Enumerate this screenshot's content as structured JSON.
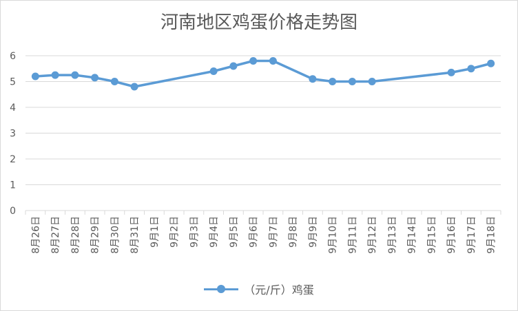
{
  "chart_data": {
    "type": "line",
    "title": "河南地区鸡蛋价格走势图",
    "categories": [
      "8月26日",
      "8月27日",
      "8月28日",
      "8月29日",
      "8月30日",
      "8月31日",
      "9月1日",
      "9月2日",
      "9月3日",
      "9月4日",
      "9月5日",
      "9月6日",
      "9月7日",
      "9月8日",
      "9月9日",
      "9月10日",
      "9月11日",
      "9月12日",
      "9月13日",
      "9月14日",
      "9月15日",
      "9月16日",
      "9月17日",
      "9月18日"
    ],
    "series": [
      {
        "name": "（元/斤）鸡蛋",
        "color": "#5b9bd5",
        "values": [
          5.2,
          5.25,
          5.25,
          5.15,
          5.0,
          4.8,
          null,
          null,
          null,
          5.4,
          5.6,
          5.8,
          5.8,
          null,
          5.1,
          5.0,
          5.0,
          5.0,
          null,
          null,
          null,
          5.35,
          5.5,
          5.7
        ]
      }
    ],
    "yticks": [
      "0",
      "1",
      "2",
      "3",
      "4",
      "5",
      "6"
    ],
    "ylim": [
      0,
      6
    ],
    "grid": true,
    "legend_position": "bottom"
  }
}
